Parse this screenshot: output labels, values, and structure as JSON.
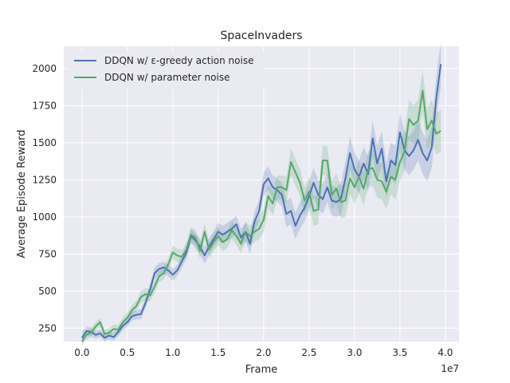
{
  "chart_data": {
    "type": "line",
    "title": "SpaceInvaders",
    "xlabel": "Frame",
    "ylabel": "Average Episode Reward",
    "x_multiplier_label": "1e7",
    "xlim": [
      -0.2,
      4.15
    ],
    "ylim": [
      160,
      2150
    ],
    "xticks": [
      0.0,
      0.5,
      1.0,
      1.5,
      2.0,
      2.5,
      3.0,
      3.5,
      4.0
    ],
    "xtick_labels": [
      "0.0",
      "0.5",
      "1.0",
      "1.5",
      "2.0",
      "2.5",
      "3.0",
      "3.5",
      "4.0"
    ],
    "yticks": [
      250,
      500,
      750,
      1000,
      1250,
      1500,
      1750,
      2000
    ],
    "ytick_labels": [
      "250",
      "500",
      "750",
      "1000",
      "1250",
      "1500",
      "1750",
      "2000"
    ],
    "grid": true,
    "legend_position": "top-left",
    "background": "#EAEAF2",
    "x": [
      0.0,
      0.05,
      0.1,
      0.15,
      0.2,
      0.25,
      0.3,
      0.35,
      0.4,
      0.45,
      0.5,
      0.55,
      0.6,
      0.65,
      0.7,
      0.75,
      0.8,
      0.85,
      0.9,
      0.95,
      1.0,
      1.05,
      1.1,
      1.15,
      1.2,
      1.25,
      1.3,
      1.35,
      1.4,
      1.45,
      1.5,
      1.55,
      1.6,
      1.65,
      1.7,
      1.75,
      1.8,
      1.85,
      1.9,
      1.95,
      2.0,
      2.05,
      2.1,
      2.15,
      2.2,
      2.25,
      2.3,
      2.35,
      2.4,
      2.45,
      2.5,
      2.55,
      2.6,
      2.65,
      2.7,
      2.75,
      2.8,
      2.85,
      2.9,
      2.95,
      3.0,
      3.05,
      3.1,
      3.15,
      3.2,
      3.25,
      3.3,
      3.35,
      3.4,
      3.45,
      3.5,
      3.55,
      3.6,
      3.65,
      3.7,
      3.75,
      3.8,
      3.85,
      3.9,
      3.95
    ],
    "series": [
      {
        "name": "DDQN w/ ε-greedy action noise",
        "color": "#4C72B0",
        "values": [
          185,
          230,
          225,
          205,
          215,
          185,
          200,
          190,
          225,
          265,
          290,
          330,
          340,
          345,
          420,
          510,
          620,
          650,
          660,
          640,
          610,
          640,
          700,
          760,
          870,
          840,
          800,
          740,
          800,
          850,
          900,
          880,
          900,
          920,
          950,
          860,
          900,
          820,
          970,
          1040,
          1220,
          1260,
          1200,
          1180,
          1150,
          1020,
          1040,
          940,
          1010,
          1060,
          1140,
          1230,
          1150,
          1120,
          1200,
          1110,
          1100,
          1120,
          1260,
          1430,
          1320,
          1270,
          1360,
          1290,
          1530,
          1360,
          1460,
          1240,
          1380,
          1350,
          1570,
          1450,
          1410,
          1450,
          1520,
          1430,
          1380,
          1470,
          1800,
          2030
        ],
        "band": [
          40,
          30,
          30,
          25,
          25,
          25,
          25,
          25,
          30,
          30,
          30,
          30,
          30,
          35,
          35,
          40,
          40,
          40,
          40,
          40,
          40,
          40,
          45,
          45,
          50,
          50,
          55,
          55,
          55,
          55,
          60,
          60,
          60,
          60,
          60,
          60,
          65,
          70,
          70,
          70,
          80,
          80,
          80,
          80,
          80,
          90,
          90,
          90,
          90,
          90,
          100,
          100,
          100,
          100,
          100,
          100,
          100,
          110,
          110,
          110,
          110,
          110,
          110,
          120,
          120,
          120,
          120,
          120,
          120,
          130,
          130,
          130,
          130,
          130,
          140,
          140,
          140,
          140,
          150,
          150
        ]
      },
      {
        "name": "DDQN w/ parameter noise",
        "color": "#55A868",
        "values": [
          160,
          205,
          220,
          260,
          290,
          210,
          220,
          245,
          240,
          290,
          320,
          370,
          400,
          460,
          480,
          470,
          530,
          600,
          620,
          680,
          760,
          740,
          730,
          780,
          880,
          860,
          770,
          900,
          780,
          830,
          870,
          830,
          850,
          910,
          870,
          820,
          900,
          870,
          900,
          920,
          980,
          1140,
          1090,
          1200,
          1200,
          1180,
          1370,
          1300,
          1230,
          1110,
          1170,
          1040,
          1050,
          1380,
          1380,
          1150,
          1190,
          1100,
          1110,
          1260,
          1200,
          1270,
          1190,
          1320,
          1330,
          1250,
          1240,
          1170,
          1270,
          1250,
          1370,
          1440,
          1660,
          1620,
          1650,
          1850,
          1590,
          1650,
          1560,
          1580
        ],
        "band": [
          30,
          30,
          30,
          30,
          30,
          30,
          30,
          30,
          30,
          30,
          35,
          35,
          35,
          40,
          40,
          40,
          40,
          40,
          40,
          40,
          45,
          45,
          45,
          50,
          50,
          50,
          55,
          55,
          55,
          60,
          60,
          60,
          60,
          60,
          60,
          65,
          65,
          70,
          70,
          70,
          80,
          80,
          80,
          80,
          80,
          90,
          90,
          90,
          90,
          90,
          100,
          100,
          100,
          100,
          100,
          100,
          100,
          110,
          110,
          110,
          110,
          110,
          110,
          120,
          120,
          120,
          120,
          120,
          120,
          130,
          130,
          130,
          130,
          130,
          140,
          140,
          140,
          140,
          140,
          140
        ]
      }
    ]
  }
}
